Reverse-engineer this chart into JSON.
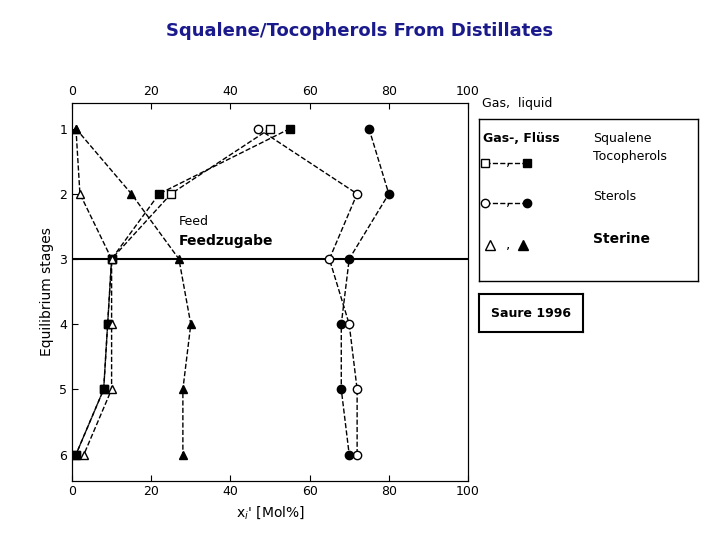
{
  "title": "Squalene/Tocopherols From Distillates",
  "xlabel": "x$_i$' [Mol%]",
  "ylabel": "Equilibrium stages",
  "stages": [
    1,
    2,
    3,
    4,
    5,
    6
  ],
  "xlim": [
    0,
    100
  ],
  "ylim_bottom": 6.4,
  "ylim_top": 0.6,
  "xticks": [
    0,
    20,
    40,
    60,
    80,
    100
  ],
  "yticks": [
    1,
    2,
    3,
    4,
    5,
    6
  ],
  "squalene_gas_x": [
    50,
    25,
    10,
    9,
    8,
    1
  ],
  "squalene_liq_x": [
    55,
    22,
    10,
    9,
    8,
    1
  ],
  "tocopherols_gas_x": [
    47,
    72,
    65,
    70,
    72,
    72
  ],
  "tocopherols_liq_x": [
    75,
    80,
    70,
    68,
    68,
    70
  ],
  "sterols_gas_x": [
    1,
    2,
    10,
    10,
    10,
    3
  ],
  "sterols_liq_x": [
    1,
    15,
    27,
    30,
    28,
    28
  ],
  "feed_line_y": 3,
  "saure_text": "Saure 1996",
  "title_color": "#1a1a8c",
  "bg_color": "white"
}
